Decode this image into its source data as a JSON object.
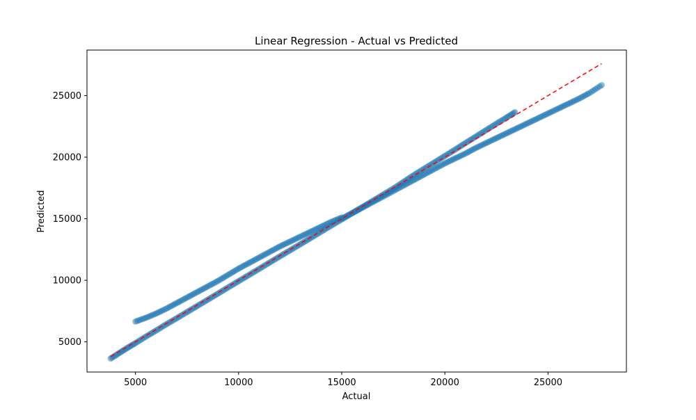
{
  "chart_data": {
    "type": "scatter",
    "title": "Linear Regression - Actual vs Predicted",
    "xlabel": "Actual",
    "ylabel": "Predicted",
    "xlim": [
      2650,
      28800
    ],
    "ylim": [
      2550,
      28700
    ],
    "xticks": [
      5000,
      10000,
      15000,
      20000,
      25000
    ],
    "yticks": [
      5000,
      10000,
      15000,
      20000,
      25000
    ],
    "xtick_labels": [
      "5000",
      "10000",
      "15000",
      "20000",
      "25000"
    ],
    "ytick_labels": [
      "5000",
      "10000",
      "15000",
      "20000",
      "25000"
    ],
    "grid": false,
    "legend": "none",
    "point_color": "#1f77b4",
    "point_alpha": 0.5,
    "reference_line": {
      "x": [
        3800,
        27600
      ],
      "y": [
        3800,
        27600
      ],
      "color": "#ff0000",
      "style": "dashed"
    },
    "series": [
      {
        "x": [
          3800,
          4200,
          4600,
          5000,
          5500,
          6000,
          6500,
          7000,
          7500,
          8000,
          8500,
          9000,
          9500,
          10000,
          10500,
          11000,
          11500,
          12000,
          12500,
          13000,
          13500,
          14000,
          14500,
          15000,
          15500,
          16000,
          16500,
          17000,
          17500,
          18000,
          18500,
          19000,
          19500,
          20000,
          20500,
          21000,
          21500,
          22000,
          22500,
          23000,
          23400
        ],
        "y": [
          3650,
          4080,
          4500,
          4900,
          5420,
          5920,
          6430,
          6920,
          7420,
          7920,
          8420,
          8920,
          9430,
          9930,
          10430,
          10930,
          11440,
          11940,
          12440,
          12940,
          13440,
          13950,
          14450,
          14950,
          15450,
          15950,
          16450,
          16950,
          17450,
          18000,
          18550,
          19070,
          19580,
          20100,
          20620,
          21150,
          21670,
          22200,
          22720,
          23230,
          23650
        ]
      },
      {
        "x": [
          5000,
          5500,
          6000,
          6500,
          7000,
          7500,
          8000,
          8500,
          9000,
          9500,
          10000,
          10500,
          11000,
          11500,
          12000,
          12500,
          13000,
          13500,
          14000,
          14500,
          15000
        ],
        "y": [
          6650,
          6950,
          7300,
          7700,
          8150,
          8600,
          9050,
          9500,
          9950,
          10450,
          10950,
          11400,
          11850,
          12300,
          12750,
          13150,
          13550,
          13950,
          14350,
          14750,
          15100
        ]
      },
      {
        "x": [
          15000,
          15500,
          16000,
          16500,
          17000,
          17500,
          18000,
          18500,
          19000,
          19500,
          20000,
          20500,
          21000,
          21500,
          22000,
          22500,
          23000,
          23500,
          24000,
          24500,
          25000,
          25500,
          26000,
          26500,
          27000,
          27600
        ],
        "y": [
          15000,
          15450,
          15900,
          16350,
          16800,
          17250,
          17700,
          18150,
          18600,
          19050,
          19500,
          19900,
          20300,
          20750,
          21150,
          21550,
          21950,
          22350,
          22750,
          23150,
          23550,
          23950,
          24350,
          24750,
          25200,
          25850
        ]
      }
    ]
  }
}
